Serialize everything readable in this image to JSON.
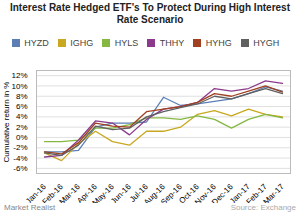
{
  "chart_data": {
    "type": "line",
    "title": "Interest Rate Hedged ETF's To Protect During High Interest\nRate Scenario",
    "ylabel": "Cumulative return in %",
    "categories": [
      "Jan-16",
      "Feb-16",
      "Mar-16",
      "Apr-16",
      "May-16",
      "Jun-16",
      "Jul-16",
      "Aug-16",
      "Sep-16",
      "Oct-16",
      "Nov-16",
      "Dec-16",
      "Jan-17",
      "Feb-17",
      "Mar-17"
    ],
    "series": [
      {
        "name": "HYZD",
        "color": "#5b7fb5",
        "values": [
          -2.8,
          -2.8,
          -2.5,
          2.0,
          2.8,
          2.8,
          3.0,
          7.8,
          6.2,
          6.5,
          7.0,
          7.5,
          8.5,
          9.8,
          9.0
        ]
      },
      {
        "name": "IGHG",
        "color": "#c8a820",
        "values": [
          -3.0,
          -4.5,
          -1.2,
          1.2,
          -0.8,
          -1.5,
          1.2,
          1.2,
          2.0,
          4.5,
          5.2,
          4.2,
          5.5,
          4.5,
          4.0
        ]
      },
      {
        "name": "HYLS",
        "color": "#85b840",
        "values": [
          -0.8,
          -0.8,
          -0.5,
          1.8,
          1.8,
          2.5,
          3.8,
          3.8,
          3.5,
          4.2,
          3.5,
          1.8,
          3.5,
          4.5,
          3.8
        ]
      },
      {
        "name": "THHY",
        "color": "#8b3a8b",
        "values": [
          -3.8,
          -3.5,
          -0.5,
          3.2,
          2.8,
          0.5,
          3.5,
          5.5,
          6.0,
          6.8,
          9.5,
          9.0,
          9.5,
          11.0,
          10.5
        ]
      },
      {
        "name": "HYHG",
        "color": "#a04020",
        "values": [
          -2.8,
          -3.2,
          -1.0,
          2.8,
          2.2,
          2.0,
          5.0,
          5.5,
          6.0,
          6.8,
          8.5,
          8.0,
          9.0,
          10.0,
          8.8
        ]
      },
      {
        "name": "HYGH",
        "color": "#606060",
        "values": [
          -3.0,
          -3.5,
          -1.5,
          2.2,
          1.5,
          1.8,
          4.0,
          5.0,
          5.8,
          6.5,
          8.0,
          7.5,
          8.5,
          9.5,
          8.5
        ]
      }
    ],
    "ylim": [
      -7,
      13
    ],
    "yticks": [
      {
        "value": -6,
        "label": "-6%"
      },
      {
        "value": -4,
        "label": "-4%"
      },
      {
        "value": -2,
        "label": "-2%"
      },
      {
        "value": 0,
        "label": "0%"
      },
      {
        "value": 2,
        "label": "2%"
      },
      {
        "value": 4,
        "label": "4%"
      },
      {
        "value": 6,
        "label": "6%"
      },
      {
        "value": 8,
        "label": "8%"
      },
      {
        "value": 10,
        "label": "10%"
      },
      {
        "value": 12,
        "label": "12%"
      }
    ],
    "grid": true,
    "legend": "top",
    "annotations": [
      "Market Realist",
      "Source: Exchange"
    ]
  }
}
